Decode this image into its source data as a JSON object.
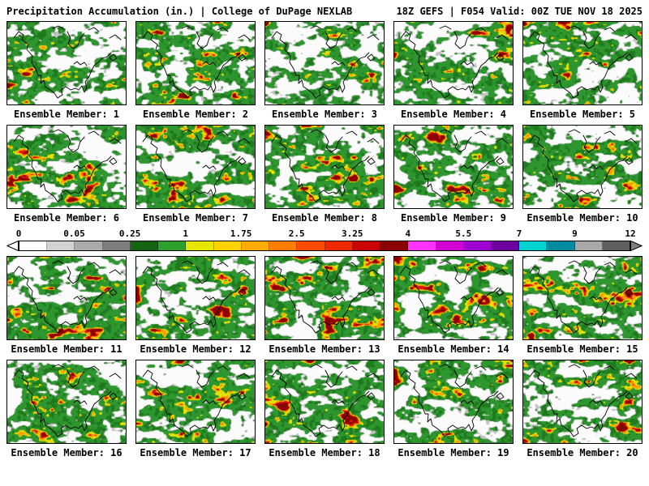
{
  "header": {
    "left": "Precipitation Accumulation (in.) | College of DuPage NEXLAB",
    "right": "18Z GEFS | F054 Valid: 00Z TUE NOV 18 2025"
  },
  "panels": [
    {
      "label": "Ensemble Member: 1"
    },
    {
      "label": "Ensemble Member: 2"
    },
    {
      "label": "Ensemble Member: 3"
    },
    {
      "label": "Ensemble Member: 4"
    },
    {
      "label": "Ensemble Member: 5"
    },
    {
      "label": "Ensemble Member: 6"
    },
    {
      "label": "Ensemble Member: 7"
    },
    {
      "label": "Ensemble Member: 8"
    },
    {
      "label": "Ensemble Member: 9"
    },
    {
      "label": "Ensemble Member: 10"
    },
    {
      "label": "Ensemble Member: 11"
    },
    {
      "label": "Ensemble Member: 12"
    },
    {
      "label": "Ensemble Member: 13"
    },
    {
      "label": "Ensemble Member: 14"
    },
    {
      "label": "Ensemble Member: 15"
    },
    {
      "label": "Ensemble Member: 16"
    },
    {
      "label": "Ensemble Member: 17"
    },
    {
      "label": "Ensemble Member: 18"
    },
    {
      "label": "Ensemble Member: 19"
    },
    {
      "label": "Ensemble Member: 20"
    }
  ],
  "colorbar": {
    "tick_labels": [
      "0",
      "0.05",
      "0.25",
      "1",
      "1.75",
      "2.5",
      "3.25",
      "4",
      "5.5",
      "7",
      "9",
      "12"
    ],
    "segment_colors": [
      "#ffffff",
      "#d2d2d2",
      "#ababab",
      "#7d7d7d",
      "#146414",
      "#2da02d",
      "#e6e600",
      "#ffd200",
      "#ffaa00",
      "#ff7d00",
      "#ff4b00",
      "#f02800",
      "#cd0000",
      "#8b0000",
      "#ff32ff",
      "#d200d2",
      "#a000d2",
      "#6e00a0",
      "#00d2d2",
      "#008ca0",
      "#a8a8a8",
      "#606060"
    ],
    "left_arrow_color": "#ffffff",
    "right_arrow_color": "#808080",
    "outline_color": "#000000"
  },
  "map": {
    "palette": [
      {
        "t": 0.44,
        "color": "#fbfbfb"
      },
      {
        "t": 0.465,
        "color": "#c3c3c3"
      },
      {
        "t": 0.67,
        "color": "#2e962e"
      },
      {
        "t": 0.71,
        "color": "#e3e300"
      },
      {
        "t": 0.745,
        "color": "#ff9b00"
      },
      {
        "t": 0.775,
        "color": "#dc1414"
      },
      {
        "t": 9.0,
        "color": "#8b0000"
      }
    ],
    "green_alt": "#1f7a1f",
    "coast_color": "#000000"
  }
}
